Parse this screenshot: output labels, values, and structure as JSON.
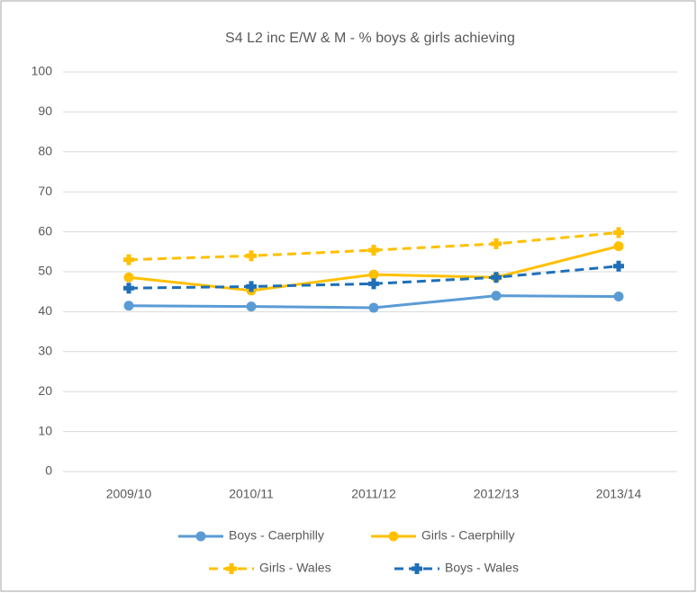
{
  "chart_data": {
    "type": "line",
    "title": "S4 L2 inc E/W & M - % boys & girls achieving",
    "categories": [
      "2009/10",
      "2010/11",
      "2011/12",
      "2012/13",
      "2013/14"
    ],
    "series": [
      {
        "name": "Boys - Caerphilly",
        "color": "#5b9bd5",
        "dashed": false,
        "marker": "circle",
        "values": [
          41.5,
          41.3,
          41.0,
          44.0,
          43.8
        ]
      },
      {
        "name": "Girls - Caerphilly",
        "color": "#ffc000",
        "dashed": false,
        "marker": "circle",
        "values": [
          48.6,
          45.3,
          49.3,
          48.6,
          56.4
        ]
      },
      {
        "name": "Girls - Wales",
        "color": "#ffc000",
        "dashed": true,
        "marker": "plus",
        "values": [
          53.0,
          54.0,
          55.4,
          57.0,
          59.8
        ]
      },
      {
        "name": "Boys - Wales",
        "color": "#1f6fb8",
        "dashed": true,
        "marker": "plus",
        "values": [
          45.9,
          46.3,
          47.0,
          48.6,
          51.4
        ]
      }
    ],
    "ylim": [
      0,
      100
    ],
    "yticks": [
      0,
      10,
      20,
      30,
      40,
      50,
      60,
      70,
      80,
      90,
      100
    ],
    "grid": true
  }
}
